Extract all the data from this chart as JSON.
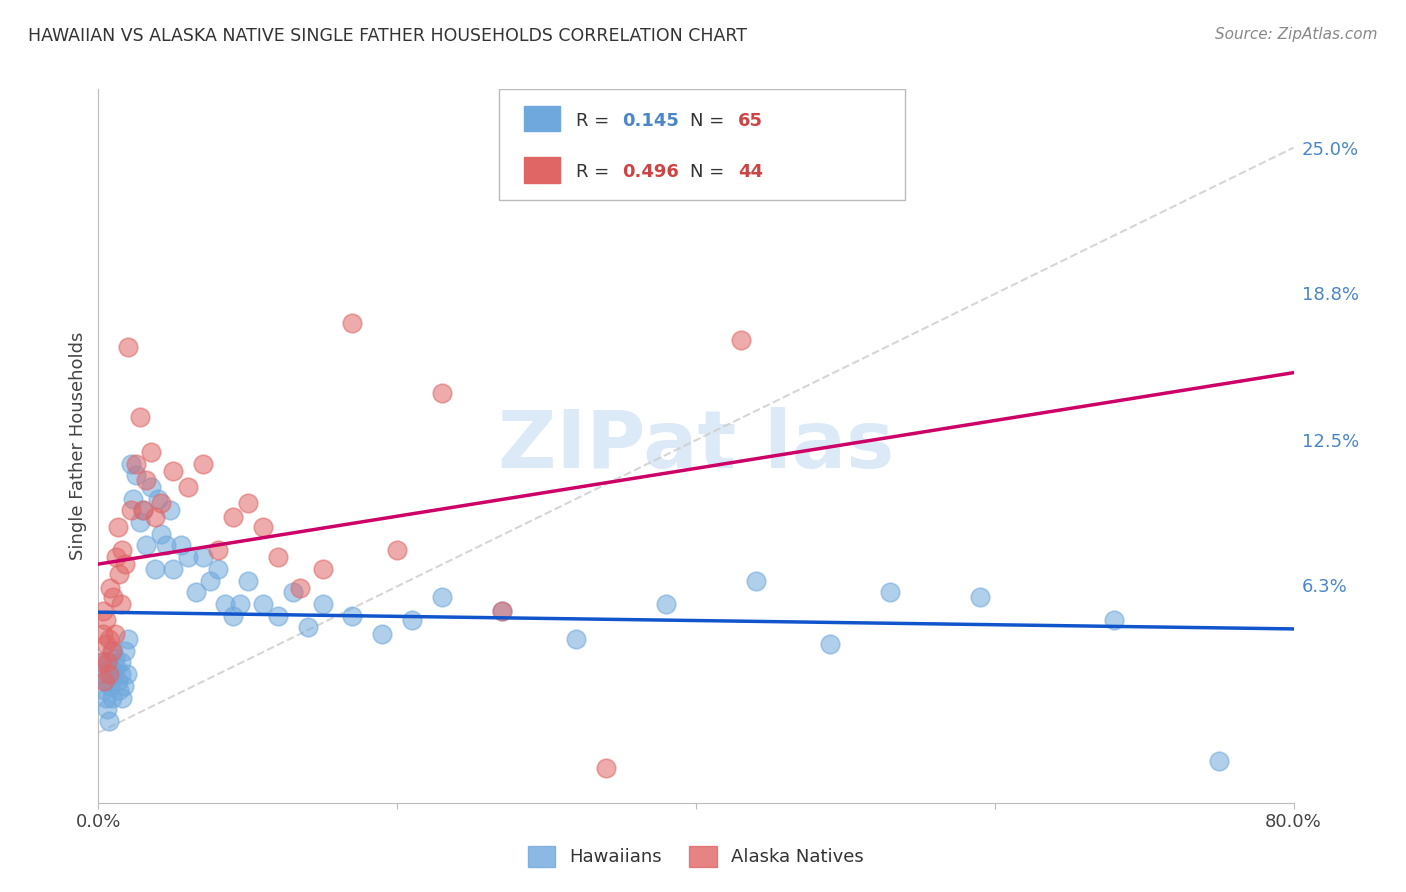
{
  "title": "HAWAIIAN VS ALASKA NATIVE SINGLE FATHER HOUSEHOLDS CORRELATION CHART",
  "source": "Source: ZipAtlas.com",
  "ylabel": "Single Father Households",
  "xlim": [
    0.0,
    0.8
  ],
  "ylim": [
    -0.03,
    0.275
  ],
  "yticks": [
    0.0,
    0.063,
    0.125,
    0.188,
    0.25
  ],
  "ytick_labels": [
    "",
    "6.3%",
    "12.5%",
    "18.8%",
    "25.0%"
  ],
  "hawaiians_color": "#6fa8dc",
  "alaska_color": "#e06666",
  "trend_hawaiians_color": "#1155cc",
  "trend_alaska_color": "#cc0066",
  "diagonal_color": "#cccccc",
  "background_color": "#ffffff",
  "grid_color": "#cccccc",
  "ytick_color": "#4a86c8",
  "legend_r1_val": "0.145",
  "legend_n1_val": "65",
  "legend_r2_val": "0.496",
  "legend_n2_val": "44",
  "hawaiians_x": [
    0.002,
    0.003,
    0.004,
    0.005,
    0.005,
    0.006,
    0.007,
    0.007,
    0.008,
    0.008,
    0.009,
    0.01,
    0.01,
    0.011,
    0.012,
    0.013,
    0.014,
    0.015,
    0.015,
    0.016,
    0.017,
    0.018,
    0.019,
    0.02,
    0.022,
    0.023,
    0.025,
    0.028,
    0.03,
    0.032,
    0.035,
    0.038,
    0.04,
    0.042,
    0.045,
    0.048,
    0.05,
    0.055,
    0.06,
    0.065,
    0.07,
    0.075,
    0.08,
    0.085,
    0.09,
    0.095,
    0.1,
    0.11,
    0.12,
    0.13,
    0.14,
    0.15,
    0.17,
    0.19,
    0.21,
    0.23,
    0.27,
    0.32,
    0.38,
    0.44,
    0.49,
    0.53,
    0.59,
    0.68,
    0.75
  ],
  "hawaiians_y": [
    0.025,
    0.03,
    0.018,
    0.015,
    0.022,
    0.01,
    0.005,
    0.03,
    0.02,
    0.028,
    0.015,
    0.035,
    0.025,
    0.032,
    0.028,
    0.022,
    0.018,
    0.03,
    0.025,
    0.015,
    0.02,
    0.035,
    0.025,
    0.04,
    0.115,
    0.1,
    0.11,
    0.09,
    0.095,
    0.08,
    0.105,
    0.07,
    0.1,
    0.085,
    0.08,
    0.095,
    0.07,
    0.08,
    0.075,
    0.06,
    0.075,
    0.065,
    0.07,
    0.055,
    0.05,
    0.055,
    0.065,
    0.055,
    0.05,
    0.06,
    0.045,
    0.055,
    0.05,
    0.042,
    0.048,
    0.058,
    0.052,
    0.04,
    0.055,
    0.065,
    0.038,
    0.06,
    0.058,
    0.048,
    -0.012
  ],
  "alaska_x": [
    0.002,
    0.003,
    0.003,
    0.004,
    0.005,
    0.005,
    0.006,
    0.007,
    0.007,
    0.008,
    0.009,
    0.01,
    0.011,
    0.012,
    0.013,
    0.014,
    0.015,
    0.016,
    0.018,
    0.02,
    0.022,
    0.025,
    0.028,
    0.03,
    0.032,
    0.035,
    0.038,
    0.042,
    0.05,
    0.06,
    0.07,
    0.08,
    0.09,
    0.1,
    0.11,
    0.12,
    0.135,
    0.15,
    0.17,
    0.2,
    0.23,
    0.27,
    0.34,
    0.43
  ],
  "alaska_y": [
    0.03,
    0.042,
    0.052,
    0.022,
    0.038,
    0.048,
    0.03,
    0.025,
    0.04,
    0.062,
    0.035,
    0.058,
    0.042,
    0.075,
    0.088,
    0.068,
    0.055,
    0.078,
    0.072,
    0.165,
    0.095,
    0.115,
    0.135,
    0.095,
    0.108,
    0.12,
    0.092,
    0.098,
    0.112,
    0.105,
    0.115,
    0.078,
    0.092,
    0.098,
    0.088,
    0.075,
    0.062,
    0.07,
    0.175,
    0.078,
    0.145,
    0.052,
    -0.015,
    0.168
  ]
}
